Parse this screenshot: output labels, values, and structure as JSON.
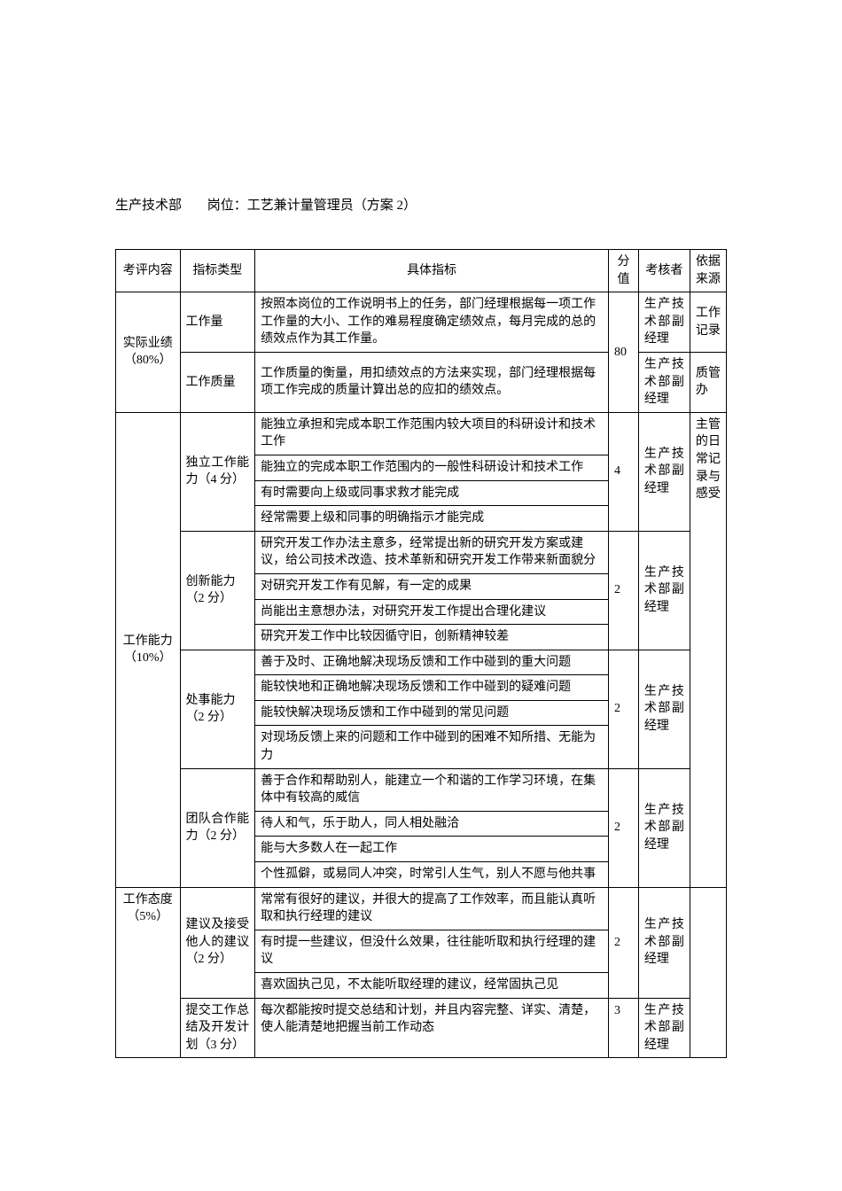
{
  "title": {
    "department": "生产技术部",
    "position_label": "岗位：工艺兼计量管理员（方案 2）"
  },
  "headers": {
    "col1": "考评内容",
    "col2": "指标类型",
    "col3": "具体指标",
    "col4": "分值",
    "col5": "考核者",
    "col6": "依据来源"
  },
  "section1": {
    "category": "实际业绩（80%）",
    "row1": {
      "type": "工作量",
      "indicator": "按照本岗位的工作说明书上的任务，部门经理根据每一项工作工作量的大小、工作的难易程度确定绩效点，每月完成的总的绩效点作为其工作量。",
      "assessor": "生产技术部副经理",
      "source": "工作记录"
    },
    "score": "80",
    "row2": {
      "type": "工作质量",
      "indicator": "工作质量的衡量，用扣绩效点的方法来实现，部门经理根据每项工作完成的质量计算出总的应扣的绩效点。",
      "assessor": "生产技术部副经理",
      "source": "质管办"
    }
  },
  "section2": {
    "category": "工作能力（10%）",
    "source": "主管的日常记录与感受",
    "group1": {
      "type": "独立工作能力（4 分）",
      "line1": "能独立承担和完成本职工作范围内较大项目的科研设计和技术工作",
      "line2": "能独立的完成本职工作范围内的一般性科研设计和技术工作",
      "line3": "有时需要向上级或同事求救才能完成",
      "line4": "经常需要上级和同事的明确指示才能完成",
      "score": "4",
      "assessor": "生产技术部副经理"
    },
    "group2": {
      "type": "创新能力（2 分）",
      "line1": "研究开发工作办法主意多，经常提出新的研究开发方案或建议，给公司技术改造、技术革新和研究开发工作带来新面貌分",
      "line2": "对研究开发工作有见解，有一定的成果",
      "line3": "尚能出主意想办法，对研究开发工作提出合理化建议",
      "line4": "研究开发工作中比较因循守旧，创新精神较差",
      "score": "2",
      "assessor": "生产技术部副经理"
    },
    "group3": {
      "type": "处事能力（2 分）",
      "line1": "善于及时、正确地解决现场反馈和工作中碰到的重大问题",
      "line2": "能较快地和正确地解决现场反馈和工作中碰到的疑难问题",
      "line3": "能较快解决现场反馈和工作中碰到的常见问题",
      "line4": "对现场反馈上来的问题和工作中碰到的困难不知所措、无能为力",
      "score": "2",
      "assessor": "生产技术部副经理"
    },
    "group4": {
      "type": "团队合作能力（2 分）",
      "line1": "善于合作和帮助别人，能建立一个和谐的工作学习环境，在集体中有较高的威信",
      "line2": "待人和气，乐于助人，同人相处融洽",
      "line3": "能与大多数人在一起工作",
      "line4": "个性孤僻，或易同人冲突，时常引人生气，别人不愿与他共事",
      "score": "2",
      "assessor": "生产技术部副经理"
    }
  },
  "section3": {
    "category": "工作态度（5%）",
    "group1": {
      "type": "建议及接受他人的建议（2 分）",
      "line1": "常常有很好的建议，并很大的提高了工作效率，而且能认真听取和执行经理的建议",
      "line2": "有时提一些建议，但没什么效果，往往能听取和执行经理的建议",
      "line3": "喜欢固执己见，不太能听取经理的建议，经常固执己见",
      "score": "2",
      "assessor": "生产技术部副经理"
    },
    "group2": {
      "type": "提交工作总结及开发计划（3 分）",
      "line1": "每次都能按时提交总结和计划，并且内容完整、详实、清楚，使人能清楚地把握当前工作动态",
      "score": "3",
      "assessor": "生产技术部副经理"
    }
  }
}
